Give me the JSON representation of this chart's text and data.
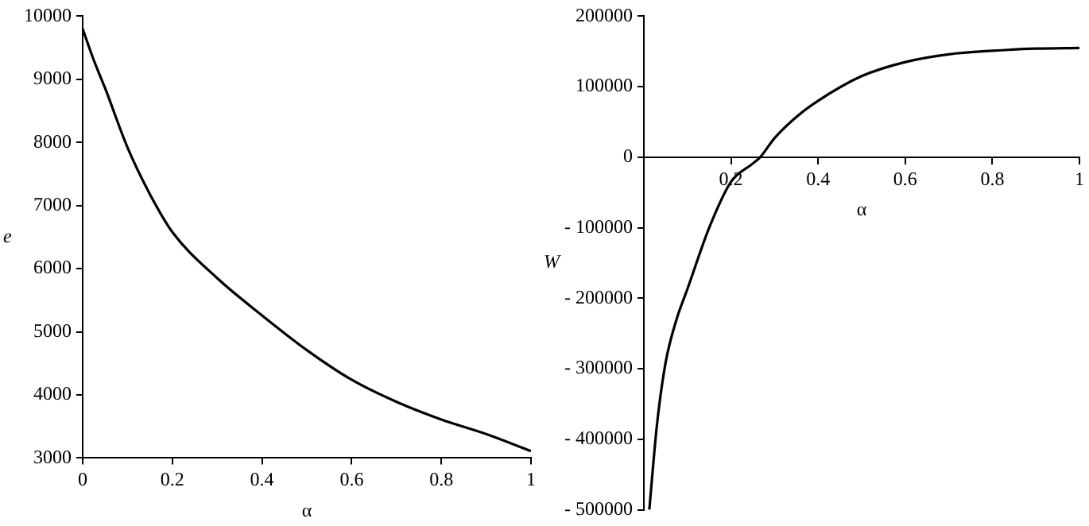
{
  "chart_data": [
    {
      "type": "line",
      "xlabel": "α",
      "ylabel": "e",
      "xlim": [
        0,
        1
      ],
      "xticks": [
        0,
        0.2,
        0.4,
        0.6,
        0.8,
        1
      ],
      "ylim": [
        3000,
        10000
      ],
      "yticks": [
        3000,
        4000,
        5000,
        6000,
        7000,
        8000,
        9000,
        10000
      ],
      "grid": false,
      "legend": false,
      "marker": "none",
      "line_style": "solid",
      "series": [
        {
          "color": "#000000",
          "x": [
            0,
            0.025,
            0.05,
            0.1,
            0.15,
            0.2,
            0.3,
            0.4,
            0.5,
            0.6,
            0.7,
            0.8,
            0.9,
            1
          ],
          "values": [
            9800,
            9300,
            8860,
            7920,
            7180,
            6580,
            5850,
            5260,
            4710,
            4240,
            3890,
            3610,
            3380,
            3110
          ]
        }
      ]
    },
    {
      "type": "line",
      "xlabel": "α",
      "ylabel": "W",
      "xlim": [
        0,
        1
      ],
      "xticks": [
        0.2,
        0.4,
        0.6,
        0.8,
        1
      ],
      "ylim": [
        -500000,
        200000
      ],
      "yticks": [
        -500000,
        -400000,
        -300000,
        -200000,
        -100000,
        0,
        100000,
        200000
      ],
      "grid": false,
      "legend": false,
      "marker": "none",
      "line_style": "solid",
      "series": [
        {
          "color": "#000000",
          "x": [
            0.0125,
            0.03,
            0.05,
            0.075,
            0.1,
            0.15,
            0.2,
            0.25,
            0.267,
            0.3,
            0.35,
            0.4,
            0.5,
            0.6,
            0.7,
            0.8,
            0.9,
            1
          ],
          "values": [
            -500000,
            -380000,
            -291000,
            -230000,
            -187000,
            -100000,
            -35000,
            -9000,
            0,
            27000,
            57000,
            80000,
            115000,
            135000,
            146000,
            151000,
            154000,
            155000
          ]
        }
      ]
    }
  ]
}
